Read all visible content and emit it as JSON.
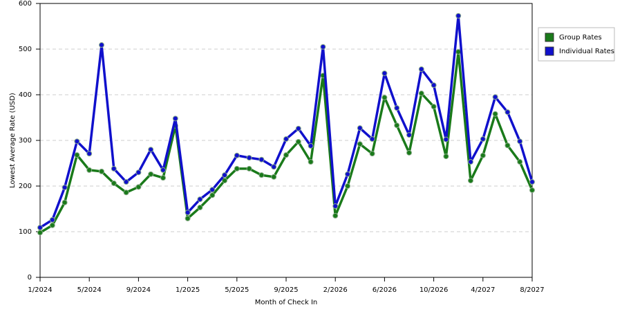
{
  "chart_data": {
    "type": "line",
    "x_label": "Month of Check In",
    "y_label": "Lowest Average Rate (USD)",
    "categories": [
      "1/2024",
      null,
      null,
      null,
      "5/2024",
      null,
      null,
      null,
      "9/2024",
      null,
      null,
      null,
      "1/2025",
      null,
      null,
      null,
      "5/2025",
      null,
      null,
      null,
      "9/2025",
      null,
      null,
      null,
      "2/2026",
      null,
      null,
      null,
      "6/2026",
      null,
      null,
      null,
      "10/2026",
      null,
      null,
      null,
      "4/2027",
      null,
      null,
      null,
      "8/2027"
    ],
    "series": [
      {
        "name": "Group Rates",
        "color": "#1a7a1a",
        "values": [
          98,
          114,
          164,
          268,
          235,
          232,
          206,
          186,
          198,
          226,
          218,
          332,
          129,
          153,
          180,
          212,
          238,
          238,
          224,
          220,
          268,
          297,
          253,
          442,
          135,
          200,
          292,
          271,
          394,
          333,
          273,
          403,
          374,
          265,
          494,
          212,
          267,
          358,
          289,
          253,
          191
        ]
      },
      {
        "name": "Individual Rates",
        "color": "#1010cc",
        "values": [
          109,
          126,
          197,
          298,
          271,
          509,
          238,
          209,
          230,
          280,
          235,
          348,
          142,
          171,
          192,
          224,
          267,
          262,
          258,
          242,
          303,
          326,
          288,
          505,
          156,
          226,
          327,
          303,
          447,
          371,
          312,
          456,
          421,
          302,
          573,
          253,
          303,
          395,
          362,
          298,
          209
        ]
      }
    ],
    "ylim": [
      0,
      600
    ],
    "yticks": [
      0,
      100,
      200,
      300,
      400,
      500,
      600
    ],
    "grid": true,
    "legend": "right"
  }
}
